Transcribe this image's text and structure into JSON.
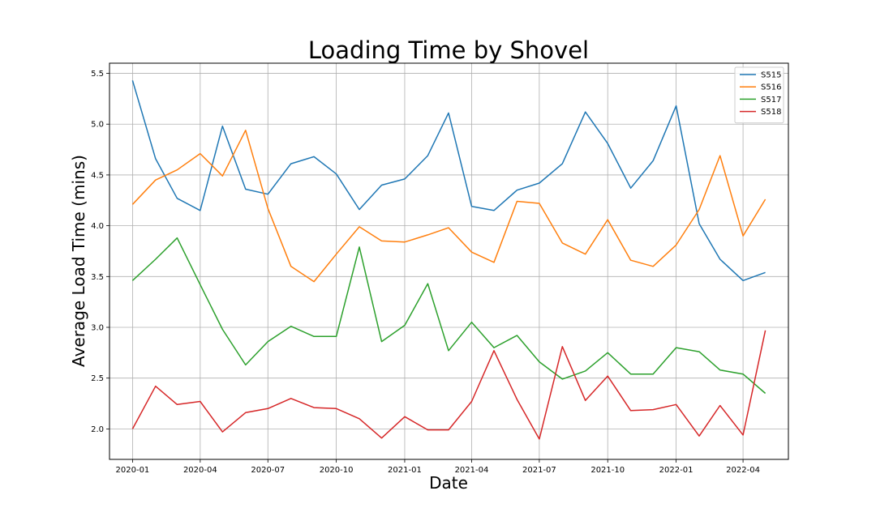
{
  "chart_data": {
    "type": "line",
    "title": "Loading Time by Shovel",
    "xlabel": "Date",
    "ylabel": "Average Load Time (mins)",
    "x": [
      "2020-01-01",
      "2020-02-01",
      "2020-03-01",
      "2020-04-01",
      "2020-05-01",
      "2020-06-01",
      "2020-07-01",
      "2020-08-01",
      "2020-09-01",
      "2020-10-01",
      "2020-11-01",
      "2020-12-01",
      "2021-01-01",
      "2021-02-01",
      "2021-03-01",
      "2021-04-01",
      "2021-05-01",
      "2021-06-01",
      "2021-07-01",
      "2021-08-01",
      "2021-09-01",
      "2021-10-01",
      "2021-11-01",
      "2021-12-01",
      "2022-01-01",
      "2022-02-01",
      "2022-03-01",
      "2022-04-01",
      "2022-05-01"
    ],
    "x_ticks": [
      "2020-01",
      "2020-04",
      "2020-07",
      "2020-10",
      "2021-01",
      "2021-04",
      "2021-07",
      "2021-10",
      "2022-01",
      "2022-04"
    ],
    "x_range": [
      "2019-12-01",
      "2022-06-01"
    ],
    "y_ticks": [
      "2.0",
      "2.5",
      "3.0",
      "3.5",
      "4.0",
      "4.5",
      "5.0",
      "5.5"
    ],
    "ylim": [
      1.7,
      5.6
    ],
    "grid": true,
    "legend_position": "top-right",
    "series": [
      {
        "name": "S515",
        "color": "#1f77b4",
        "values": [
          5.43,
          4.66,
          4.27,
          4.15,
          4.98,
          4.36,
          4.31,
          4.61,
          4.68,
          4.51,
          4.16,
          4.4,
          4.46,
          4.69,
          5.11,
          4.19,
          4.15,
          4.35,
          4.42,
          4.61,
          5.12,
          4.81,
          4.37,
          4.64,
          5.18,
          4.02,
          3.67,
          3.46,
          3.54
        ]
      },
      {
        "name": "S516",
        "color": "#ff7f0e",
        "values": [
          4.21,
          4.45,
          4.55,
          4.71,
          4.49,
          4.94,
          4.17,
          3.6,
          3.45,
          3.72,
          3.99,
          3.85,
          3.84,
          3.91,
          3.98,
          3.74,
          3.64,
          4.24,
          4.22,
          3.83,
          3.72,
          4.06,
          3.66,
          3.6,
          3.81,
          4.16,
          4.69,
          3.9,
          4.26
        ]
      },
      {
        "name": "S517",
        "color": "#2ca02c",
        "values": [
          3.46,
          3.67,
          3.88,
          3.42,
          2.98,
          2.63,
          2.86,
          3.01,
          2.91,
          2.91,
          3.79,
          2.86,
          3.02,
          3.43,
          2.77,
          3.05,
          2.8,
          2.92,
          2.66,
          2.49,
          2.57,
          2.75,
          2.54,
          2.54,
          2.8,
          2.76,
          2.58,
          2.54,
          2.35
        ]
      },
      {
        "name": "S518",
        "color": "#d62728",
        "values": [
          2.0,
          2.42,
          2.24,
          2.27,
          1.97,
          2.16,
          2.2,
          2.3,
          2.21,
          2.2,
          2.1,
          1.91,
          2.12,
          1.99,
          1.99,
          2.27,
          2.77,
          2.29,
          1.9,
          2.81,
          2.28,
          2.52,
          2.18,
          2.19,
          2.24,
          1.93,
          2.23,
          1.94,
          2.97
        ]
      }
    ]
  }
}
